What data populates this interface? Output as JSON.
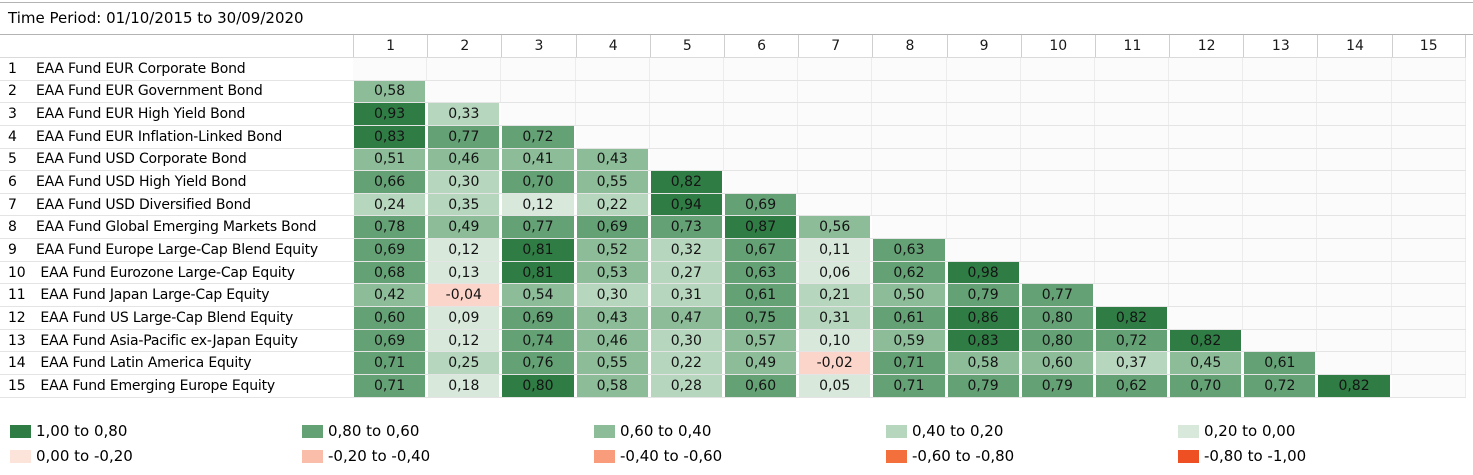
{
  "header": {
    "time_period": "Time Period: 01/10/2015 to 30/09/2020"
  },
  "band_colors": {
    "A": "#2f7d45",
    "B": "#64a276",
    "C": "#8cbc98",
    "D": "#b7d6be",
    "E": "#d8e8db",
    "F": "#fbd5c9"
  },
  "matrix": {
    "columns": [
      "1",
      "2",
      "3",
      "4",
      "5",
      "6",
      "7",
      "8",
      "9",
      "10",
      "11",
      "12",
      "13",
      "14",
      "15"
    ],
    "rows": [
      {
        "num": "1",
        "label": "EAA Fund EUR Corporate Bond",
        "cells": []
      },
      {
        "num": "2",
        "label": "EAA Fund EUR Government Bond",
        "cells": [
          {
            "v": "0,58",
            "band": "C"
          }
        ]
      },
      {
        "num": "3",
        "label": "EAA Fund EUR High Yield Bond",
        "cells": [
          {
            "v": "0,93",
            "band": "A"
          },
          {
            "v": "0,33",
            "band": "D"
          }
        ]
      },
      {
        "num": "4",
        "label": "EAA Fund EUR Inflation-Linked Bond",
        "cells": [
          {
            "v": "0,83",
            "band": "A"
          },
          {
            "v": "0,77",
            "band": "B"
          },
          {
            "v": "0,72",
            "band": "B"
          }
        ]
      },
      {
        "num": "5",
        "label": "EAA Fund USD Corporate Bond",
        "cells": [
          {
            "v": "0,51",
            "band": "C"
          },
          {
            "v": "0,46",
            "band": "C"
          },
          {
            "v": "0,41",
            "band": "C"
          },
          {
            "v": "0,43",
            "band": "C"
          }
        ]
      },
      {
        "num": "6",
        "label": "EAA Fund USD High Yield Bond",
        "cells": [
          {
            "v": "0,66",
            "band": "B"
          },
          {
            "v": "0,30",
            "band": "D"
          },
          {
            "v": "0,70",
            "band": "B"
          },
          {
            "v": "0,55",
            "band": "C"
          },
          {
            "v": "0,82",
            "band": "A"
          }
        ]
      },
      {
        "num": "7",
        "label": "EAA Fund USD Diversified Bond",
        "cells": [
          {
            "v": "0,24",
            "band": "D"
          },
          {
            "v": "0,35",
            "band": "D"
          },
          {
            "v": "0,12",
            "band": "E"
          },
          {
            "v": "0,22",
            "band": "D"
          },
          {
            "v": "0,94",
            "band": "A"
          },
          {
            "v": "0,69",
            "band": "B"
          }
        ]
      },
      {
        "num": "8",
        "label": "EAA Fund Global Emerging Markets Bond",
        "cells": [
          {
            "v": "0,78",
            "band": "B"
          },
          {
            "v": "0,49",
            "band": "C"
          },
          {
            "v": "0,77",
            "band": "B"
          },
          {
            "v": "0,69",
            "band": "B"
          },
          {
            "v": "0,73",
            "band": "B"
          },
          {
            "v": "0,87",
            "band": "A"
          },
          {
            "v": "0,56",
            "band": "C"
          }
        ]
      },
      {
        "num": "9",
        "label": "EAA Fund Europe Large-Cap Blend Equity",
        "cells": [
          {
            "v": "0,69",
            "band": "B"
          },
          {
            "v": "0,12",
            "band": "E"
          },
          {
            "v": "0,81",
            "band": "A"
          },
          {
            "v": "0,52",
            "band": "C"
          },
          {
            "v": "0,32",
            "band": "D"
          },
          {
            "v": "0,67",
            "band": "B"
          },
          {
            "v": "0,11",
            "band": "E"
          },
          {
            "v": "0,63",
            "band": "B"
          }
        ]
      },
      {
        "num": "10",
        "label": "EAA Fund Eurozone Large-Cap Equity",
        "cells": [
          {
            "v": "0,68",
            "band": "B"
          },
          {
            "v": "0,13",
            "band": "E"
          },
          {
            "v": "0,81",
            "band": "A"
          },
          {
            "v": "0,53",
            "band": "C"
          },
          {
            "v": "0,27",
            "band": "D"
          },
          {
            "v": "0,63",
            "band": "B"
          },
          {
            "v": "0,06",
            "band": "E"
          },
          {
            "v": "0,62",
            "band": "B"
          },
          {
            "v": "0,98",
            "band": "A"
          }
        ]
      },
      {
        "num": "11",
        "label": "EAA Fund Japan Large-Cap Equity",
        "cells": [
          {
            "v": "0,42",
            "band": "C"
          },
          {
            "v": "-0,04",
            "band": "F"
          },
          {
            "v": "0,54",
            "band": "C"
          },
          {
            "v": "0,30",
            "band": "D"
          },
          {
            "v": "0,31",
            "band": "D"
          },
          {
            "v": "0,61",
            "band": "B"
          },
          {
            "v": "0,21",
            "band": "D"
          },
          {
            "v": "0,50",
            "band": "C"
          },
          {
            "v": "0,79",
            "band": "B"
          },
          {
            "v": "0,77",
            "band": "B"
          }
        ]
      },
      {
        "num": "12",
        "label": "EAA Fund US Large-Cap Blend Equity",
        "cells": [
          {
            "v": "0,60",
            "band": "B"
          },
          {
            "v": "0,09",
            "band": "E"
          },
          {
            "v": "0,69",
            "band": "B"
          },
          {
            "v": "0,43",
            "band": "C"
          },
          {
            "v": "0,47",
            "band": "C"
          },
          {
            "v": "0,75",
            "band": "B"
          },
          {
            "v": "0,31",
            "band": "D"
          },
          {
            "v": "0,61",
            "band": "B"
          },
          {
            "v": "0,86",
            "band": "A"
          },
          {
            "v": "0,80",
            "band": "B"
          },
          {
            "v": "0,82",
            "band": "A"
          }
        ]
      },
      {
        "num": "13",
        "label": "EAA Fund Asia-Pacific ex-Japan Equity",
        "cells": [
          {
            "v": "0,69",
            "band": "B"
          },
          {
            "v": "0,12",
            "band": "E"
          },
          {
            "v": "0,74",
            "band": "B"
          },
          {
            "v": "0,46",
            "band": "C"
          },
          {
            "v": "0,30",
            "band": "D"
          },
          {
            "v": "0,57",
            "band": "C"
          },
          {
            "v": "0,10",
            "band": "E"
          },
          {
            "v": "0,59",
            "band": "C"
          },
          {
            "v": "0,83",
            "band": "A"
          },
          {
            "v": "0,80",
            "band": "B"
          },
          {
            "v": "0,72",
            "band": "B"
          },
          {
            "v": "0,82",
            "band": "A"
          }
        ]
      },
      {
        "num": "14",
        "label": "EAA Fund Latin America Equity",
        "cells": [
          {
            "v": "0,71",
            "band": "B"
          },
          {
            "v": "0,25",
            "band": "D"
          },
          {
            "v": "0,76",
            "band": "B"
          },
          {
            "v": "0,55",
            "band": "C"
          },
          {
            "v": "0,22",
            "band": "D"
          },
          {
            "v": "0,49",
            "band": "C"
          },
          {
            "v": "-0,02",
            "band": "F"
          },
          {
            "v": "0,71",
            "band": "B"
          },
          {
            "v": "0,58",
            "band": "C"
          },
          {
            "v": "0,60",
            "band": "C"
          },
          {
            "v": "0,37",
            "band": "D"
          },
          {
            "v": "0,45",
            "band": "C"
          },
          {
            "v": "0,61",
            "band": "B"
          }
        ]
      },
      {
        "num": "15",
        "label": "EAA Fund Emerging Europe Equity",
        "cells": [
          {
            "v": "0,71",
            "band": "B"
          },
          {
            "v": "0,18",
            "band": "E"
          },
          {
            "v": "0,80",
            "band": "A"
          },
          {
            "v": "0,58",
            "band": "C"
          },
          {
            "v": "0,28",
            "band": "D"
          },
          {
            "v": "0,60",
            "band": "B"
          },
          {
            "v": "0,05",
            "band": "E"
          },
          {
            "v": "0,71",
            "band": "B"
          },
          {
            "v": "0,79",
            "band": "B"
          },
          {
            "v": "0,79",
            "band": "B"
          },
          {
            "v": "0,62",
            "band": "B"
          },
          {
            "v": "0,70",
            "band": "B"
          },
          {
            "v": "0,72",
            "band": "B"
          },
          {
            "v": "0,82",
            "band": "A"
          }
        ]
      }
    ]
  },
  "legend": {
    "rows": [
      [
        {
          "label": "1,00 to 0,80",
          "color": "#2f7d45"
        },
        {
          "label": "0,80 to 0,60",
          "color": "#64a276"
        },
        {
          "label": "0,60 to 0,40",
          "color": "#8cbc98"
        },
        {
          "label": "0,40 to 0,20",
          "color": "#b7d6be"
        },
        {
          "label": "0,20 to 0,00",
          "color": "#d8e8db"
        }
      ],
      [
        {
          "label": "0,00 to -0,20",
          "color": "#fce4da"
        },
        {
          "label": "-0,20 to -0,40",
          "color": "#f9bda9"
        },
        {
          "label": "-0,40 to -0,60",
          "color": "#f89c7c"
        },
        {
          "label": "-0,60 to -0,80",
          "color": "#f3703d"
        },
        {
          "label": "-0,80 to -1,00",
          "color": "#ee5023"
        }
      ]
    ]
  },
  "chart_data": {
    "type": "heatmap",
    "title": "",
    "time_period": "01/10/2015 to 30/09/2020",
    "categories": [
      "EAA Fund EUR Corporate Bond",
      "EAA Fund EUR Government Bond",
      "EAA Fund EUR High Yield Bond",
      "EAA Fund EUR Inflation-Linked Bond",
      "EAA Fund USD Corporate Bond",
      "EAA Fund USD High Yield Bond",
      "EAA Fund USD Diversified Bond",
      "EAA Fund Global Emerging Markets Bond",
      "EAA Fund Europe Large-Cap Blend Equity",
      "EAA Fund Eurozone Large-Cap Equity",
      "EAA Fund Japan Large-Cap Equity",
      "EAA Fund US Large-Cap Blend Equity",
      "EAA Fund Asia-Pacific ex-Japan Equity",
      "EAA Fund Latin America Equity",
      "EAA Fund Emerging Europe Equity"
    ],
    "values_lower_triangle": [
      [],
      [
        0.58
      ],
      [
        0.93,
        0.33
      ],
      [
        0.83,
        0.77,
        0.72
      ],
      [
        0.51,
        0.46,
        0.41,
        0.43
      ],
      [
        0.66,
        0.3,
        0.7,
        0.55,
        0.82
      ],
      [
        0.24,
        0.35,
        0.12,
        0.22,
        0.94,
        0.69
      ],
      [
        0.78,
        0.49,
        0.77,
        0.69,
        0.73,
        0.87,
        0.56
      ],
      [
        0.69,
        0.12,
        0.81,
        0.52,
        0.32,
        0.67,
        0.11,
        0.63
      ],
      [
        0.68,
        0.13,
        0.81,
        0.53,
        0.27,
        0.63,
        0.06,
        0.62,
        0.98
      ],
      [
        0.42,
        -0.04,
        0.54,
        0.3,
        0.31,
        0.61,
        0.21,
        0.5,
        0.79,
        0.77
      ],
      [
        0.6,
        0.09,
        0.69,
        0.43,
        0.47,
        0.75,
        0.31,
        0.61,
        0.86,
        0.8,
        0.82
      ],
      [
        0.69,
        0.12,
        0.74,
        0.46,
        0.3,
        0.57,
        0.1,
        0.59,
        0.83,
        0.8,
        0.72,
        0.82
      ],
      [
        0.71,
        0.25,
        0.76,
        0.55,
        0.22,
        0.49,
        -0.02,
        0.71,
        0.58,
        0.6,
        0.37,
        0.45,
        0.61
      ],
      [
        0.71,
        0.18,
        0.8,
        0.58,
        0.28,
        0.6,
        0.05,
        0.71,
        0.79,
        0.79,
        0.62,
        0.7,
        0.72,
        0.82
      ]
    ],
    "scale": {
      "min": -1.0,
      "max": 1.0,
      "band_edges": [
        1.0,
        0.8,
        0.6,
        0.4,
        0.2,
        0.0,
        -0.2,
        -0.4,
        -0.6,
        -0.8,
        -1.0
      ]
    },
    "legend_position": "bottom"
  }
}
